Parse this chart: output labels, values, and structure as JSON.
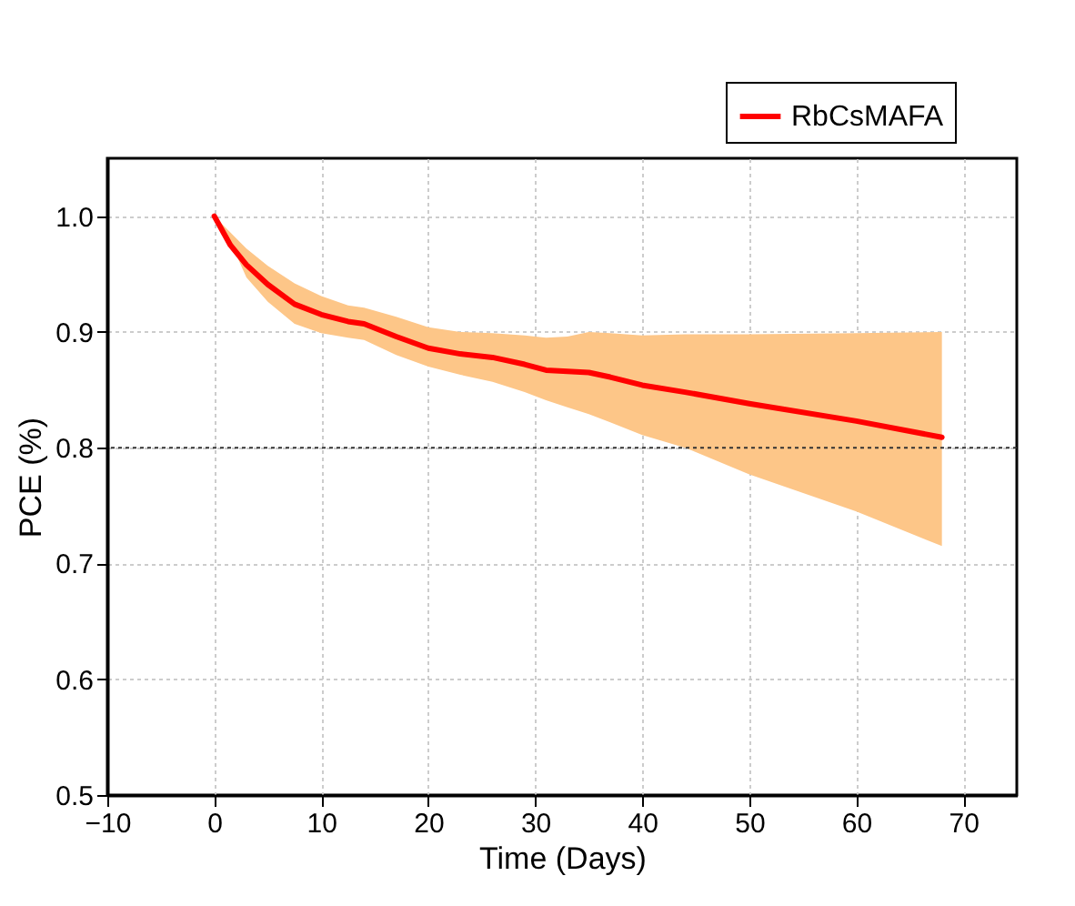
{
  "chart_data": {
    "type": "line",
    "xlabel": "Time (Days)",
    "ylabel": "PCE (%)",
    "series": [
      {
        "name": "RbCsMAFA",
        "color": "#ff0000",
        "x": [
          0,
          1.5,
          3,
          5,
          7.5,
          10,
          12.5,
          14,
          17,
          20,
          23,
          26,
          29,
          31,
          33,
          35,
          37,
          40,
          44,
          50,
          60,
          68
        ],
        "values": [
          1.0,
          0.975,
          0.958,
          0.941,
          0.924,
          0.915,
          0.909,
          0.907,
          0.896,
          0.886,
          0.881,
          0.878,
          0.872,
          0.867,
          0.866,
          0.865,
          0.861,
          0.854,
          0.848,
          0.838,
          0.823,
          0.809
        ],
        "upper": [
          1.0,
          0.986,
          0.972,
          0.957,
          0.942,
          0.931,
          0.923,
          0.921,
          0.913,
          0.904,
          0.9,
          0.899,
          0.897,
          0.895,
          0.896,
          0.9,
          0.899,
          0.897,
          0.898,
          0.898,
          0.899,
          0.9
        ],
        "lower": [
          1.0,
          0.978,
          0.947,
          0.926,
          0.907,
          0.899,
          0.895,
          0.893,
          0.88,
          0.87,
          0.863,
          0.857,
          0.848,
          0.841,
          0.835,
          0.829,
          0.822,
          0.811,
          0.8,
          0.777,
          0.745,
          0.715
        ]
      }
    ],
    "xlim": [
      -10,
      75
    ],
    "xticks": [
      -10,
      0,
      10,
      20,
      30,
      40,
      50,
      60,
      70
    ],
    "ylim": [
      0.5,
      1.05
    ],
    "yticks": [
      0.5,
      0.6,
      0.7,
      0.8,
      0.9,
      {
        "value": 1,
        "label": "1.0"
      }
    ],
    "ref_lines": [
      {
        "axis": "y",
        "value": 0.8,
        "color": "#333333",
        "line_style": "dotted"
      }
    ],
    "grid": true,
    "legend": "top right",
    "marker": "none",
    "line_style": "solid"
  }
}
